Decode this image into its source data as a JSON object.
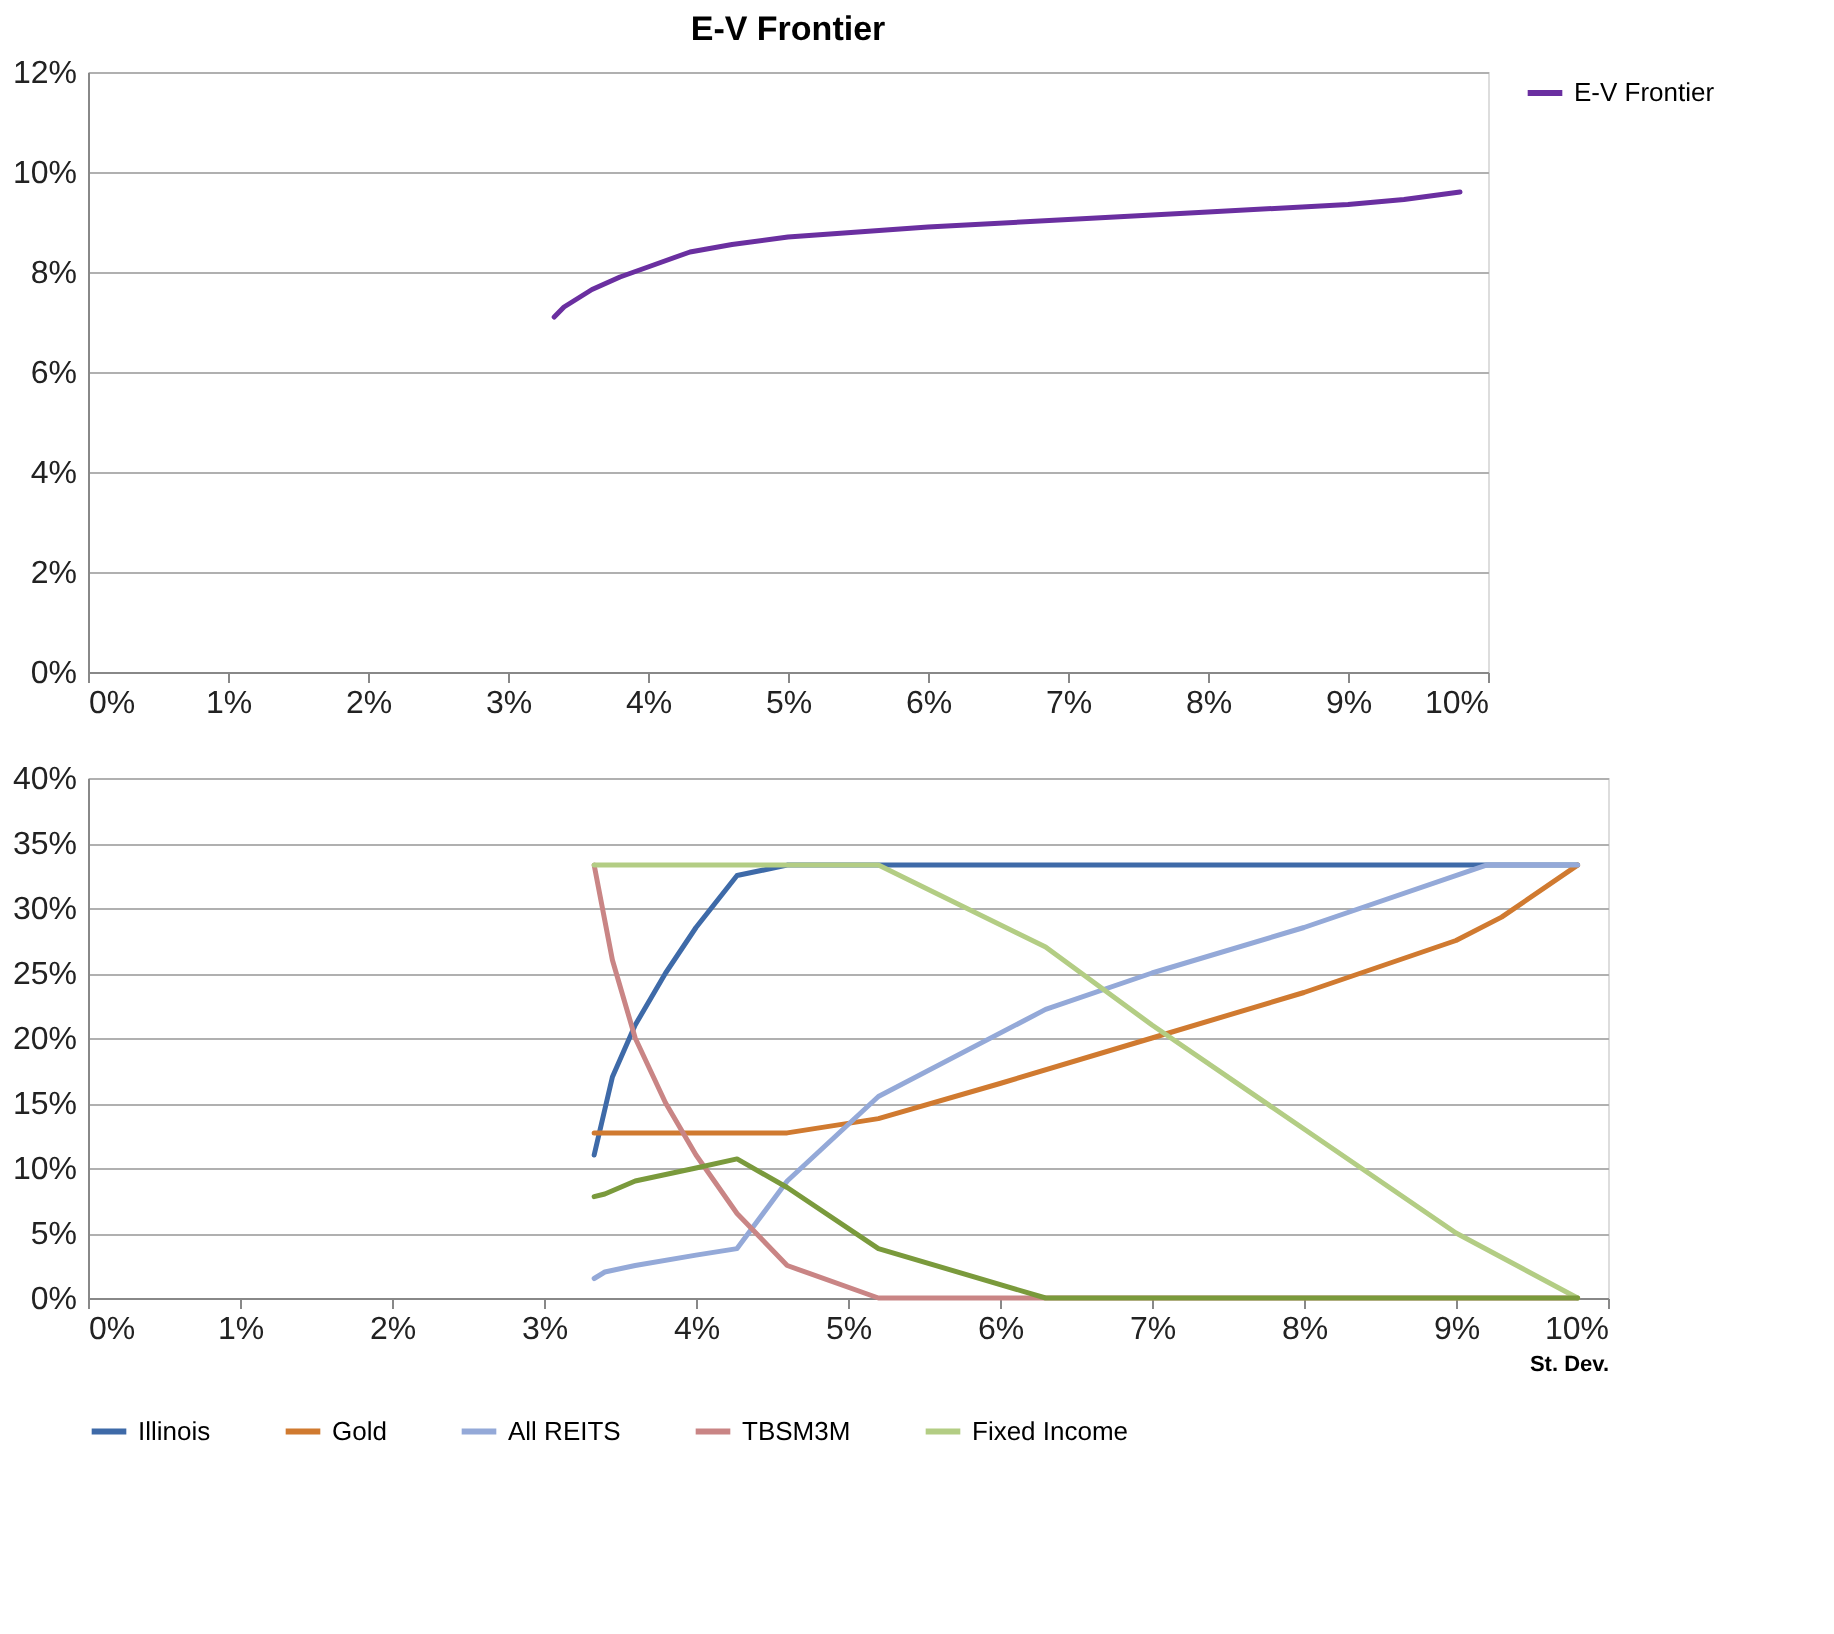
{
  "chart_data": [
    {
      "type": "line",
      "title": "E-V Frontier",
      "grid": "y",
      "legend": "right",
      "marker": "none",
      "line_style": "solid",
      "xlim": [
        0,
        10
      ],
      "ylim": [
        0,
        12
      ],
      "xticks": [
        {
          "value": 0,
          "label": "0%"
        },
        {
          "value": 1,
          "label": "1%"
        },
        {
          "value": 2,
          "label": "2%"
        },
        {
          "value": 3,
          "label": "3%"
        },
        {
          "value": 4,
          "label": "4%"
        },
        {
          "value": 5,
          "label": "5%"
        },
        {
          "value": 6,
          "label": "6%"
        },
        {
          "value": 7,
          "label": "7%"
        },
        {
          "value": 8,
          "label": "8%"
        },
        {
          "value": 9,
          "label": "9%"
        },
        {
          "value": 10,
          "label": "10%"
        }
      ],
      "yticks": [
        {
          "value": 0,
          "label": "0%"
        },
        {
          "value": 2,
          "label": "2%"
        },
        {
          "value": 4,
          "label": "4%"
        },
        {
          "value": 6,
          "label": "6%"
        },
        {
          "value": 8,
          "label": "8%"
        },
        {
          "value": 10,
          "label": "10%"
        },
        {
          "value": 12,
          "label": "12%"
        }
      ],
      "series": [
        {
          "name": "E-V Frontier",
          "color": "#6a2fa0",
          "x": [
            3.33,
            3.4,
            3.6,
            3.8,
            4.0,
            4.3,
            4.6,
            5.0,
            6.0,
            7.0,
            8.0,
            9.0,
            9.4,
            9.8
          ],
          "values": [
            7.1,
            7.3,
            7.65,
            7.9,
            8.1,
            8.4,
            8.55,
            8.7,
            8.9,
            9.05,
            9.2,
            9.35,
            9.45,
            9.6
          ]
        }
      ]
    },
    {
      "type": "line",
      "xlabel": "St. Dev.",
      "grid": "y",
      "legend": "bottom",
      "marker": "none",
      "line_style": "solid",
      "xlim": [
        0,
        10
      ],
      "ylim": [
        0,
        40
      ],
      "xticks": [
        {
          "value": 0,
          "label": "0%"
        },
        {
          "value": 1,
          "label": "1%"
        },
        {
          "value": 2,
          "label": "2%"
        },
        {
          "value": 3,
          "label": "3%"
        },
        {
          "value": 4,
          "label": "4%"
        },
        {
          "value": 5,
          "label": "5%"
        },
        {
          "value": 6,
          "label": "6%"
        },
        {
          "value": 7,
          "label": "7%"
        },
        {
          "value": 8,
          "label": "8%"
        },
        {
          "value": 9,
          "label": "9%"
        },
        {
          "value": 10,
          "label": "10%"
        }
      ],
      "yticks": [
        {
          "value": 0,
          "label": "0%"
        },
        {
          "value": 5,
          "label": "5%"
        },
        {
          "value": 10,
          "label": "10%"
        },
        {
          "value": 15,
          "label": "15%"
        },
        {
          "value": 20,
          "label": "20%"
        },
        {
          "value": 25,
          "label": "25%"
        },
        {
          "value": 30,
          "label": "30%"
        },
        {
          "value": 35,
          "label": "35%"
        },
        {
          "value": 40,
          "label": "40%"
        }
      ],
      "series": [
        {
          "name": "Illinois",
          "color": "#3e6aa8",
          "x": [
            3.33,
            3.45,
            3.6,
            3.8,
            4.0,
            4.27,
            4.6,
            9.8
          ],
          "values": [
            11,
            17,
            21,
            25,
            28.5,
            32.5,
            33.3,
            33.3
          ]
        },
        {
          "color": "#7a9a3c",
          "x": [
            3.33,
            3.4,
            3.6,
            4.0,
            4.27,
            4.6,
            5.2,
            6.3,
            9.8
          ],
          "values": [
            7.8,
            8,
            9,
            10,
            10.7,
            8.5,
            3.8,
            0,
            0
          ]
        },
        {
          "name": "Gold",
          "color": "#d07a30",
          "x": [
            3.33,
            4.6,
            5.2,
            6.0,
            7.0,
            8.0,
            9.0,
            9.3,
            9.8
          ],
          "values": [
            12.7,
            12.7,
            13.8,
            16.5,
            20,
            23.5,
            27.5,
            29.3,
            33.3
          ]
        },
        {
          "name": "All REITS",
          "color": "#94a9d8",
          "x": [
            3.33,
            3.4,
            3.6,
            4.0,
            4.27,
            4.6,
            5.2,
            6.3,
            7.0,
            8.0,
            9.2,
            9.8
          ],
          "values": [
            1.5,
            2,
            2.5,
            3.3,
            3.8,
            9,
            15.5,
            22.2,
            25,
            28.5,
            33.3,
            33.3
          ]
        },
        {
          "name": "TBSM3M",
          "color": "#c98585",
          "x": [
            3.33,
            3.45,
            3.6,
            3.8,
            4.0,
            4.27,
            4.6,
            5.2,
            9.8
          ],
          "values": [
            33.3,
            26,
            20,
            15,
            11,
            6.5,
            2.5,
            0,
            0
          ]
        },
        {
          "name": "Fixed Income",
          "color": "#b3cd84",
          "x": [
            3.33,
            5.2,
            6.3,
            7.0,
            8.0,
            9.0,
            9.8
          ],
          "values": [
            33.3,
            33.3,
            27,
            21,
            13,
            5,
            0
          ]
        }
      ]
    }
  ]
}
